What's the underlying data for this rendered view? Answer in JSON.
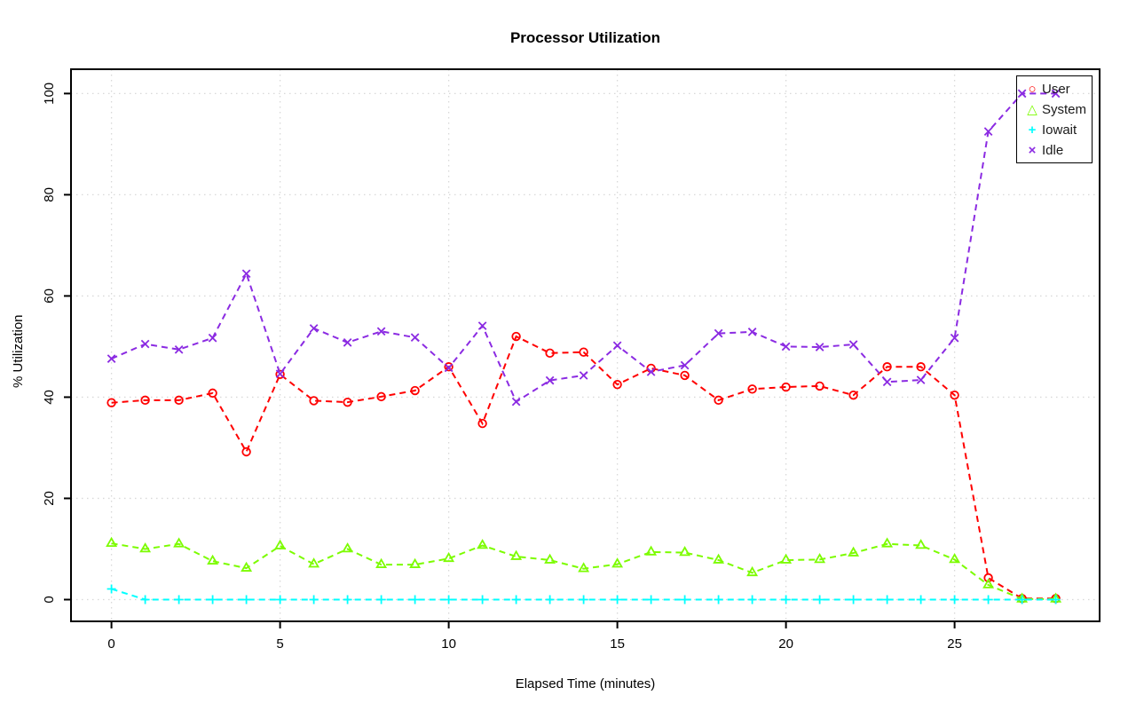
{
  "chart_data": {
    "type": "line",
    "title": "Processor Utilization",
    "xlabel": "Elapsed Time (minutes)",
    "ylabel": "% Utilization",
    "x_ticks": [
      0,
      5,
      10,
      15,
      20,
      25
    ],
    "y_ticks": [
      0,
      20,
      40,
      60,
      80,
      100
    ],
    "x_range": [
      -1.2,
      29.3
    ],
    "y_range": [
      -4.3,
      104.8
    ],
    "grid": "dotted",
    "legend_position": "top-right",
    "x": [
      0,
      1,
      2,
      3,
      4,
      5,
      6,
      7,
      8,
      9,
      10,
      11,
      12,
      13,
      14,
      15,
      16,
      17,
      18,
      19,
      20,
      21,
      22,
      23,
      24,
      25,
      26,
      27,
      28
    ],
    "series": [
      {
        "name": "User",
        "color": "#FF0000",
        "marker": "circle",
        "values": [
          38.9,
          39.4,
          39.4,
          40.8,
          29.2,
          44.5,
          39.3,
          39.0,
          40.1,
          41.3,
          46.0,
          34.8,
          52.0,
          48.7,
          48.9,
          42.5,
          45.7,
          44.3,
          39.4,
          41.6,
          42.0,
          42.2,
          40.4,
          46.0,
          46.0,
          40.4,
          4.3,
          0.2,
          0.2
        ]
      },
      {
        "name": "System",
        "color": "#7CFC00",
        "marker": "triangle",
        "values": [
          11.1,
          10.0,
          11.0,
          7.6,
          6.2,
          10.6,
          7.0,
          10.0,
          6.9,
          6.9,
          8.1,
          10.7,
          8.5,
          7.8,
          6.1,
          7.0,
          9.4,
          9.3,
          7.8,
          5.3,
          7.8,
          7.9,
          9.2,
          11.0,
          10.7,
          7.9,
          2.9,
          0.1,
          0.1
        ]
      },
      {
        "name": "Iowait",
        "color": "#00FFFF",
        "marker": "plus",
        "values": [
          2.1,
          0,
          0,
          0,
          0,
          0,
          0,
          0,
          0,
          0,
          0,
          0,
          0,
          0,
          0,
          0,
          0,
          0,
          0,
          0,
          0,
          0,
          0,
          0,
          0,
          0,
          0,
          0,
          0
        ]
      },
      {
        "name": "Idle",
        "color": "#8B2BE2",
        "marker": "x",
        "values": [
          47.6,
          50.5,
          49.4,
          51.7,
          64.4,
          44.6,
          53.6,
          50.8,
          53.0,
          51.8,
          45.8,
          54.1,
          39.1,
          43.3,
          44.3,
          50.2,
          45.0,
          46.3,
          52.6,
          52.9,
          50.0,
          49.9,
          50.4,
          43.0,
          43.4,
          51.7,
          92.5,
          100.0,
          100.0
        ]
      }
    ],
    "grid_color": "#D8D8D8",
    "axis_color": "#000000"
  }
}
